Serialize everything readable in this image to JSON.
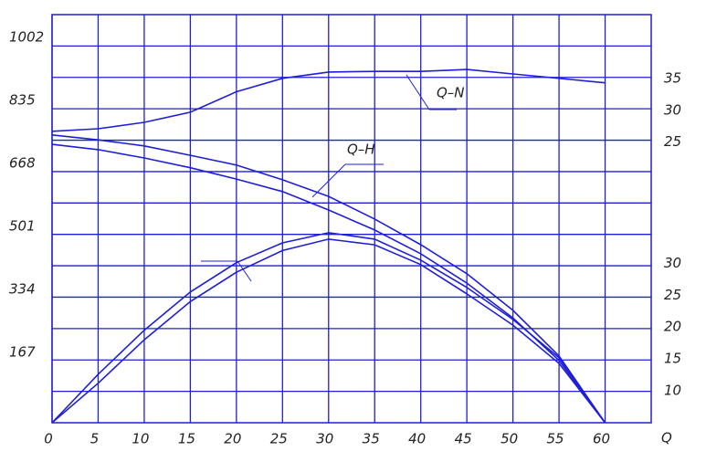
{
  "chart_data": {
    "type": "line",
    "x_label": "Q",
    "xlim": [
      0,
      65
    ],
    "xticks": [
      0,
      5,
      10,
      15,
      20,
      25,
      30,
      35,
      40,
      45,
      50,
      55,
      60
    ],
    "ylim": [
      0,
      1082
    ],
    "yticks": [
      167,
      334,
      501,
      668,
      835,
      1002
    ],
    "y2lim": [
      5,
      69
    ],
    "y2ticks": [
      10,
      15,
      20,
      25,
      30
    ],
    "y3lim": [
      -19,
      45
    ],
    "y3ticks": [
      25,
      30,
      35
    ],
    "color": "#1f1fd6",
    "annotations": [
      "Q–N",
      "Q–H"
    ],
    "x": [
      0,
      5,
      10,
      15,
      20,
      25,
      30,
      35,
      40,
      45,
      50,
      55,
      60
    ],
    "series": [
      {
        "name": "Q–N",
        "axis": "y3",
        "values": [
          26.7,
          27.1,
          28.1,
          29.7,
          32.9,
          35,
          36,
          36.1,
          36.1,
          36.4,
          35.7,
          35,
          34.3
        ]
      },
      {
        "name": "Q–H",
        "axis": "y",
        "values": [
          763,
          750,
          734,
          709,
          683,
          644,
          600,
          540,
          472,
          395,
          298,
          177,
          0
        ]
      },
      {
        "axis": "y",
        "values": [
          738,
          724,
          702,
          676,
          646,
          613,
          564,
          511,
          448,
          370,
          278,
          165,
          0
        ]
      },
      {
        "axis": "y2",
        "values": [
          5,
          12.6,
          19.5,
          25.5,
          30.1,
          33.2,
          34.8,
          33.8,
          30.5,
          26.2,
          21.2,
          15.2,
          5
        ]
      },
      {
        "axis": "y2",
        "values": [
          5,
          11.2,
          18,
          24,
          28.6,
          32,
          33.8,
          32.9,
          29.8,
          25.2,
          20.3,
          14.3,
          5
        ]
      }
    ]
  }
}
